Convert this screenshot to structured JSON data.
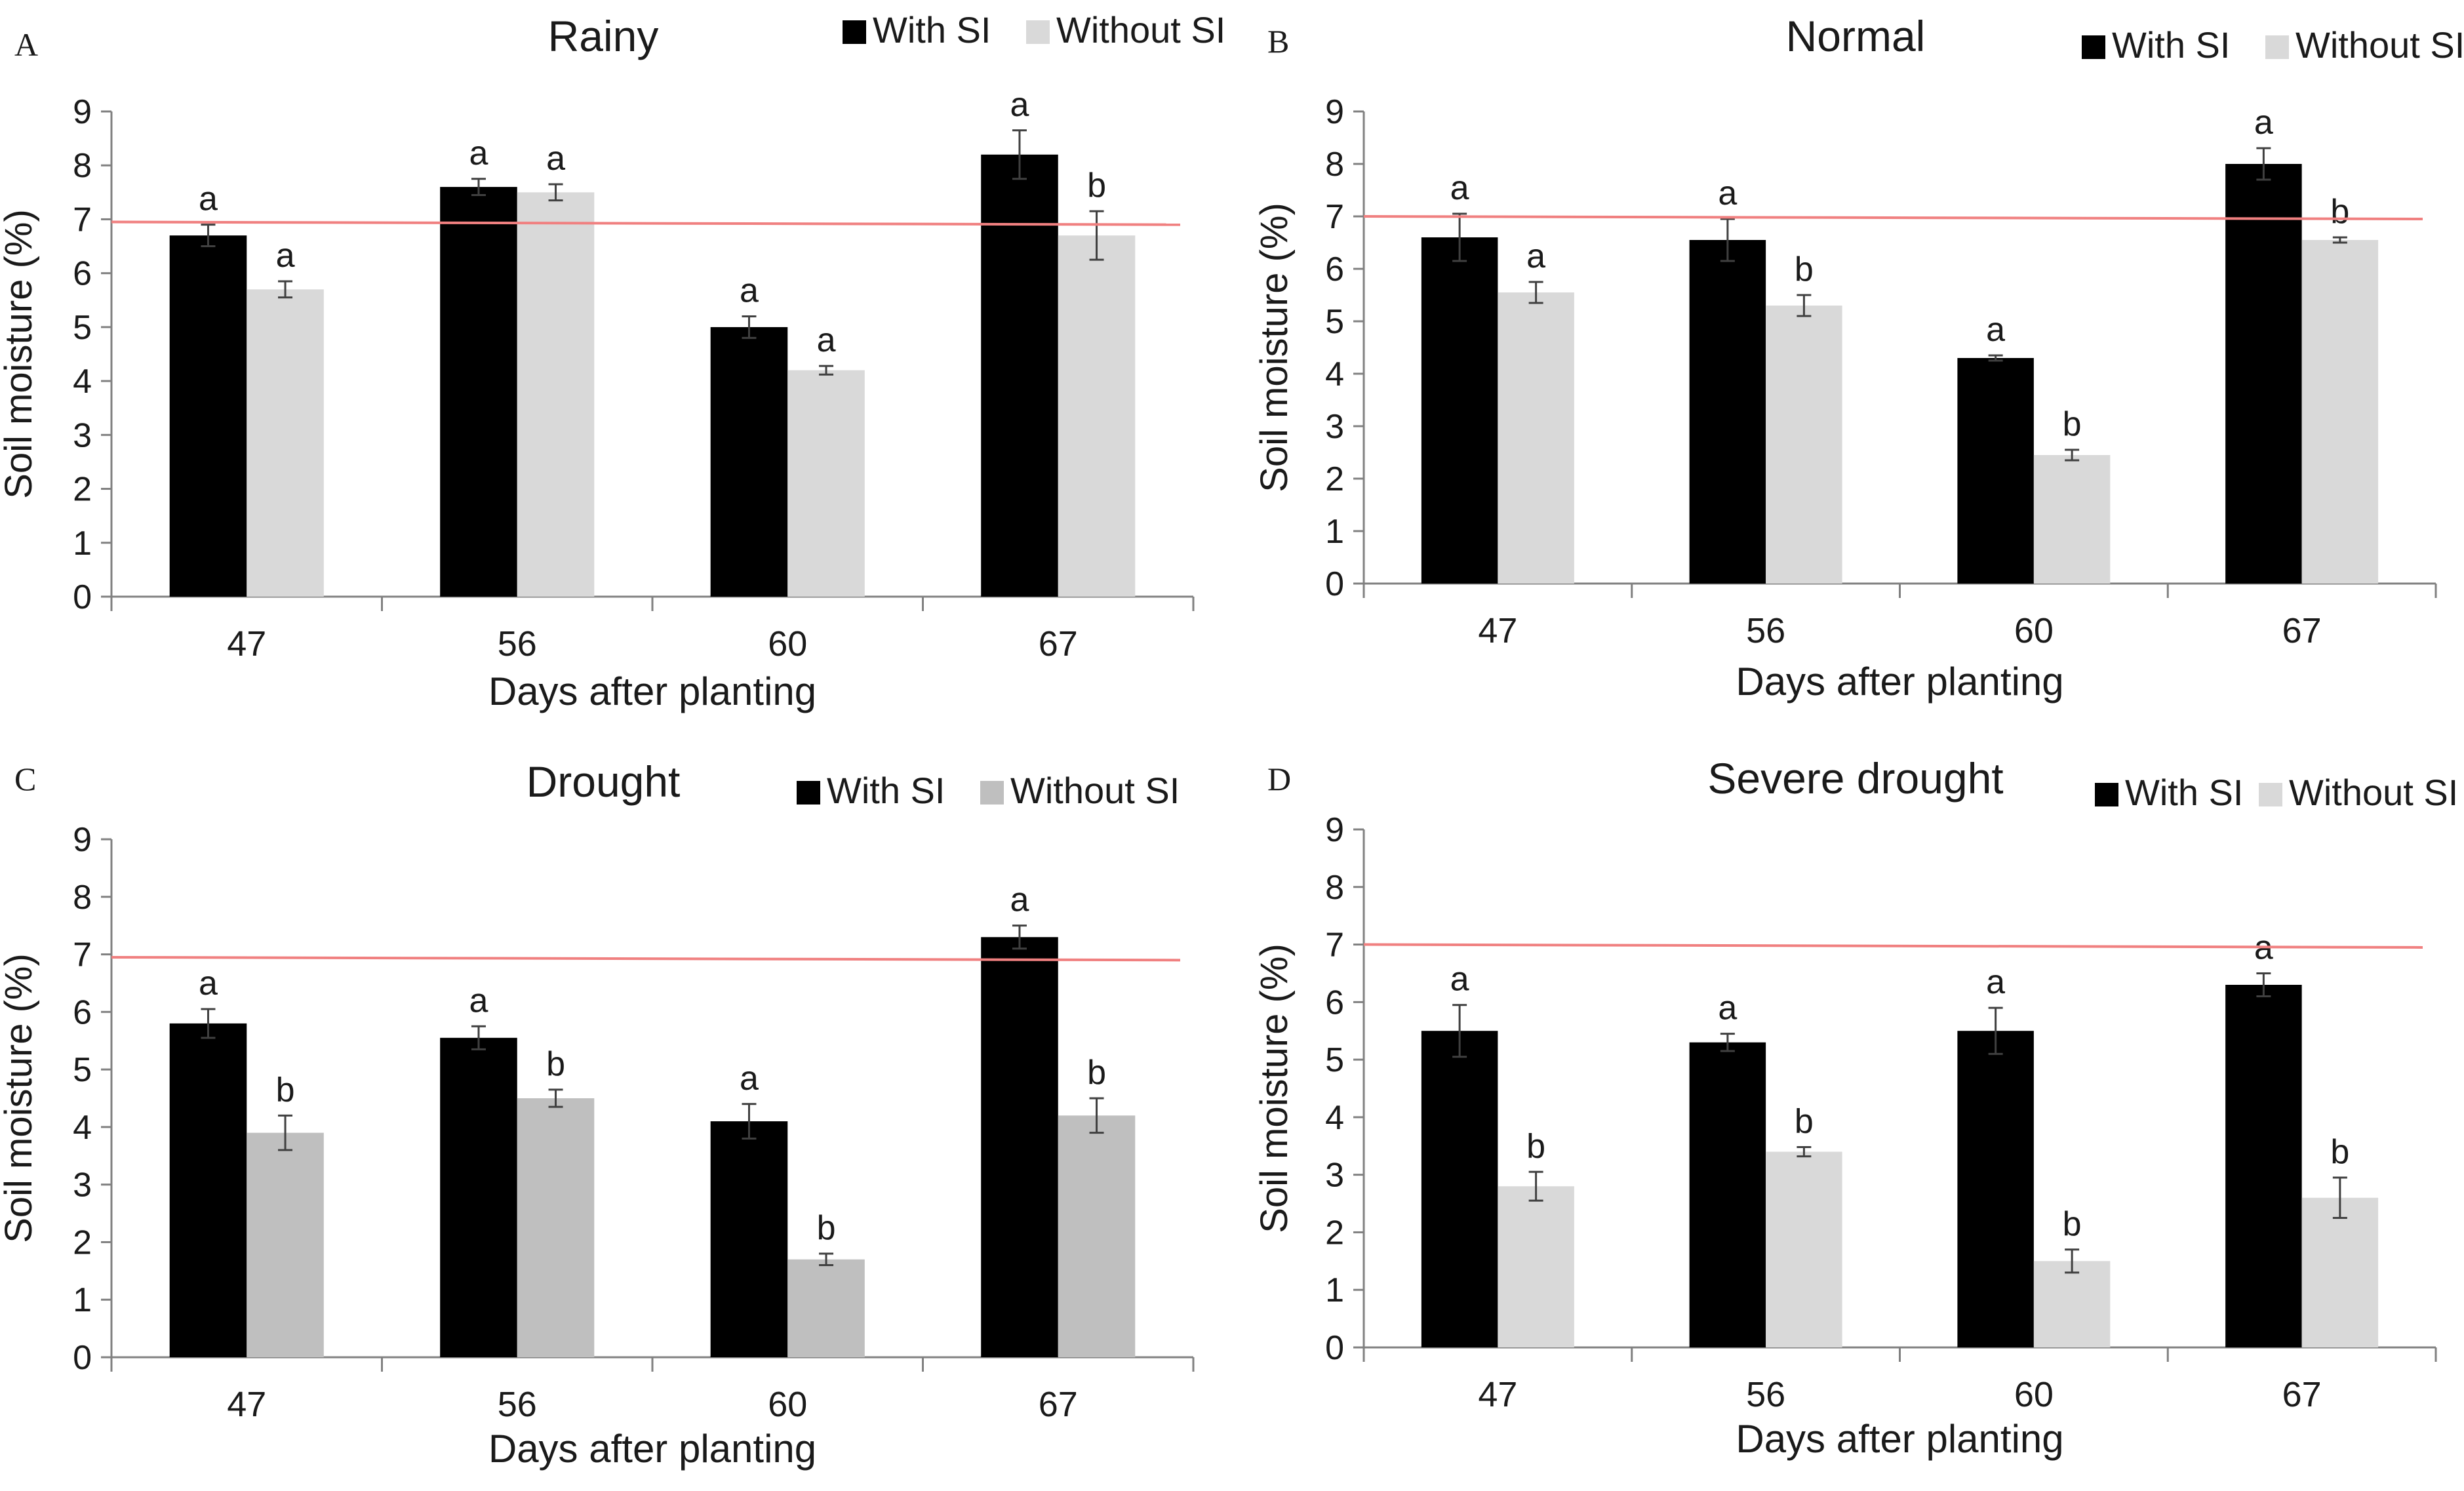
{
  "colors": {
    "with_si": "#000000",
    "without_si_light": "#d9d9d9",
    "without_si_mid": "#bfbfbf",
    "threshold": "#f08080",
    "axis": "#808080",
    "text": "#1a1a1a"
  },
  "chart_data": [
    {
      "panel": "A",
      "type": "bar",
      "title": "Rainy",
      "xlabel": "Days after planting",
      "ylabel": "Soil moisture (%)",
      "ylim": [
        0,
        9
      ],
      "yticks": [
        "0",
        "1",
        "2",
        "3",
        "4",
        "5",
        "6",
        "7",
        "8",
        "9"
      ],
      "categories": [
        "47",
        "56",
        "60",
        "67"
      ],
      "threshold": 6.95,
      "legend_position": "top-right",
      "without_color": "#d9d9d9",
      "series": [
        {
          "name": "With SI",
          "values": [
            6.7,
            7.6,
            5.0,
            8.2
          ],
          "errors": [
            0.2,
            0.15,
            0.2,
            0.45
          ],
          "letters": [
            "a",
            "a",
            "a",
            "a"
          ]
        },
        {
          "name": "Without SI",
          "values": [
            5.7,
            7.5,
            4.2,
            6.7
          ],
          "errors": [
            0.15,
            0.15,
            0.08,
            0.45
          ],
          "letters": [
            "a",
            "a",
            "a",
            "b"
          ]
        }
      ]
    },
    {
      "panel": "B",
      "type": "bar",
      "title": "Normal",
      "xlabel": "Days after planting",
      "ylabel": "Soil moisture (%)",
      "ylim": [
        0,
        9
      ],
      "yticks": [
        "0",
        "1",
        "2",
        "3",
        "4",
        "5",
        "6",
        "7",
        "8",
        "9"
      ],
      "categories": [
        "47",
        "56",
        "60",
        "67"
      ],
      "threshold": 7.0,
      "legend_position": "top-right",
      "without_color": "#d9d9d9",
      "series": [
        {
          "name": "With SI",
          "values": [
            6.6,
            6.55,
            4.3,
            8.0
          ],
          "errors": [
            0.45,
            0.4,
            0.05,
            0.3
          ],
          "letters": [
            "a",
            "a",
            "a",
            "a"
          ]
        },
        {
          "name": "Without SI",
          "values": [
            5.55,
            5.3,
            2.45,
            6.55
          ],
          "errors": [
            0.2,
            0.2,
            0.1,
            0.05
          ],
          "letters": [
            "a",
            "b",
            "b",
            "b"
          ]
        }
      ]
    },
    {
      "panel": "C",
      "type": "bar",
      "title": "Drought",
      "xlabel": "Days after planting",
      "ylabel": "Soil moisture (%)",
      "ylim": [
        0,
        9
      ],
      "yticks": [
        "0",
        "1",
        "2",
        "3",
        "4",
        "5",
        "6",
        "7",
        "8",
        "9"
      ],
      "categories": [
        "47",
        "56",
        "60",
        "67"
      ],
      "threshold": 6.95,
      "legend_position": "top-right",
      "without_color": "#bfbfbf",
      "series": [
        {
          "name": "With SI",
          "values": [
            5.8,
            5.55,
            4.1,
            7.3
          ],
          "errors": [
            0.25,
            0.2,
            0.3,
            0.2
          ],
          "letters": [
            "a",
            "a",
            "a",
            "a"
          ]
        },
        {
          "name": "Without SI",
          "values": [
            3.9,
            4.5,
            1.7,
            4.2
          ],
          "errors": [
            0.3,
            0.15,
            0.1,
            0.3
          ],
          "letters": [
            "b",
            "b",
            "b",
            "b"
          ]
        }
      ]
    },
    {
      "panel": "D",
      "type": "bar",
      "title": "Severe drought",
      "xlabel": "Days after planting",
      "ylabel": "Soil moisture (%)",
      "ylim": [
        0,
        9
      ],
      "yticks": [
        "0",
        "1",
        "2",
        "3",
        "4",
        "5",
        "6",
        "7",
        "8",
        "9"
      ],
      "categories": [
        "47",
        "56",
        "60",
        "67"
      ],
      "threshold": 7.0,
      "legend_position": "top-right",
      "without_color": "#d9d9d9",
      "series": [
        {
          "name": "With SI",
          "values": [
            5.5,
            5.3,
            5.5,
            6.3
          ],
          "errors": [
            0.45,
            0.15,
            0.4,
            0.2
          ],
          "letters": [
            "a",
            "a",
            "a",
            "a"
          ]
        },
        {
          "name": "Without SI",
          "values": [
            2.8,
            3.4,
            1.5,
            2.6
          ],
          "errors": [
            0.25,
            0.08,
            0.2,
            0.35
          ],
          "letters": [
            "b",
            "b",
            "b",
            "b"
          ]
        }
      ]
    }
  ]
}
